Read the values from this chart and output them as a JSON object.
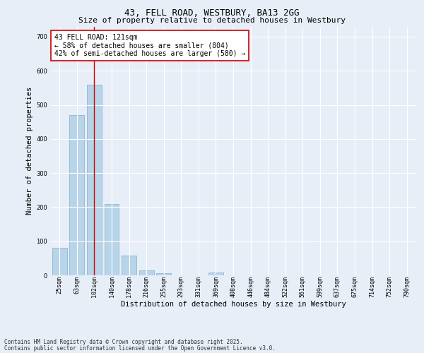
{
  "title": "43, FELL ROAD, WESTBURY, BA13 2GG",
  "subtitle": "Size of property relative to detached houses in Westbury",
  "xlabel": "Distribution of detached houses by size in Westbury",
  "ylabel": "Number of detached properties",
  "categories": [
    "25sqm",
    "63sqm",
    "102sqm",
    "140sqm",
    "178sqm",
    "216sqm",
    "255sqm",
    "293sqm",
    "331sqm",
    "369sqm",
    "408sqm",
    "446sqm",
    "484sqm",
    "522sqm",
    "561sqm",
    "599sqm",
    "637sqm",
    "675sqm",
    "714sqm",
    "752sqm",
    "790sqm"
  ],
  "values": [
    80,
    470,
    560,
    210,
    57,
    15,
    7,
    0,
    0,
    8,
    0,
    0,
    0,
    0,
    0,
    0,
    0,
    0,
    0,
    0,
    0
  ],
  "bar_color": "#b8d4e8",
  "bar_edge_color": "#7aaec8",
  "vline_x": 2,
  "vline_color": "#cc0000",
  "annotation_text": "43 FELL ROAD: 121sqm\n← 58% of detached houses are smaller (804)\n42% of semi-detached houses are larger (580) →",
  "annotation_box_color": "#ffffff",
  "annotation_box_edge": "#cc0000",
  "ylim": [
    0,
    730
  ],
  "yticks": [
    0,
    100,
    200,
    300,
    400,
    500,
    600,
    700
  ],
  "background_color": "#e8eef8",
  "grid_color": "#ffffff",
  "footer_line1": "Contains HM Land Registry data © Crown copyright and database right 2025.",
  "footer_line2": "Contains public sector information licensed under the Open Government Licence v3.0.",
  "title_fontsize": 9,
  "subtitle_fontsize": 8,
  "axis_label_fontsize": 7.5,
  "tick_fontsize": 6,
  "annotation_fontsize": 7,
  "footer_fontsize": 5.5
}
